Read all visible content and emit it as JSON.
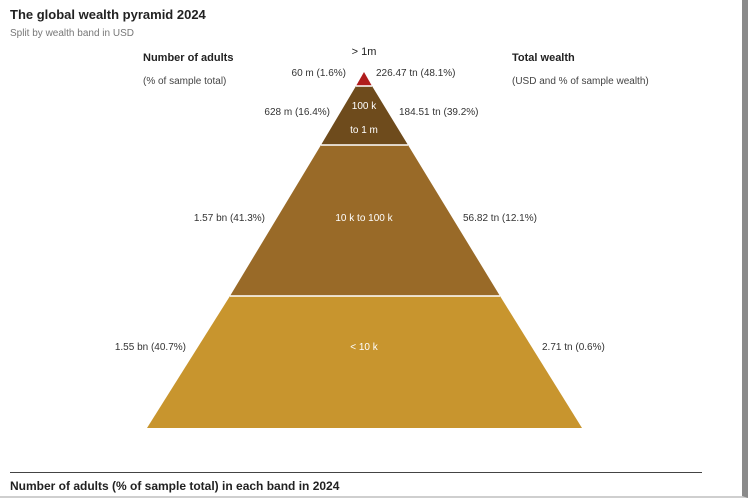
{
  "chart_data": {
    "type": "pyramid",
    "title": "The global wealth pyramid 2024",
    "subtitle": "Split by wealth band in USD",
    "left_header": "Number of adults",
    "left_subheader": "(% of sample total)",
    "right_header": "Total wealth",
    "right_subheader": "(USD and % of sample wealth)",
    "bands": [
      {
        "name": "> 1m",
        "adults": "60 m (1.6%)",
        "wealth": "226.47 tn (48.1%)",
        "color": "#b01c1c"
      },
      {
        "name_lines": [
          "100 k",
          "to 1 m"
        ],
        "name": "100 k to 1 m",
        "adults": "628 m (16.4%)",
        "wealth": "184.51 tn (39.2%)",
        "color": "#6e4b1c"
      },
      {
        "name": "10 k to 100 k",
        "adults": "1.57 bn (41.3%)",
        "wealth": "56.82 tn (12.1%)",
        "color": "#996a28"
      },
      {
        "name": "< 10 k",
        "adults": "1.55 bn (40.7%)",
        "wealth": "2.71 tn (0.6%)",
        "color": "#c8952e"
      }
    ]
  },
  "footer": {
    "section_title": "Number of adults (% of sample total) in each band in 2024"
  }
}
